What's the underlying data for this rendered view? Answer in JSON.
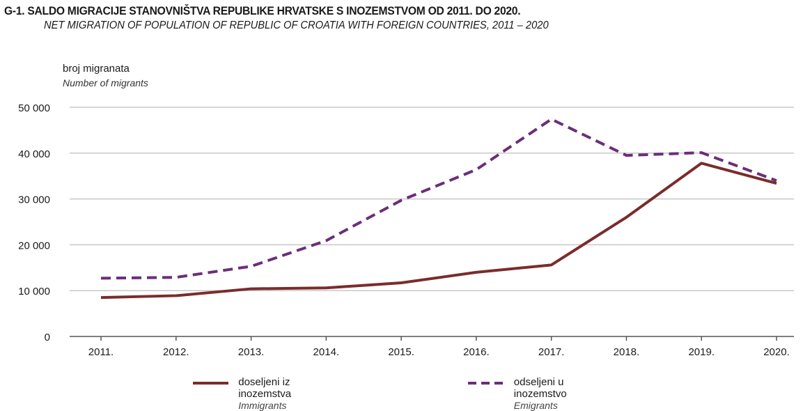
{
  "title": {
    "main": "G-1.  SALDO MIGRACIJE STANOVNIŠTVA REPUBLIKE HRVATSKE S INOZEMSTVOM OD 2011. DO 2020.",
    "sub": "NET MIGRATION OF POPULATION OF REPUBLIC OF CROATIA  WITH FOREIGN COUNTRIES, 2011 – 2020"
  },
  "yaxis": {
    "label_hr": "broj migranata",
    "label_en": "Number of migrants"
  },
  "colors": {
    "immigrants": "#7a2c2c",
    "emigrants": "#6b2e78",
    "grid": "#c8c8c8",
    "axis": "#555555"
  },
  "legend": [
    {
      "label_hr": "doseljeni iz inozemstva",
      "label_en": "Immigrants"
    },
    {
      "label_hr": "odseljeni u inozemstvo",
      "label_en": "Emigrants"
    }
  ],
  "chart_data": {
    "type": "line",
    "title": "SALDO MIGRACIJE STANOVNIŠTVA REPUBLIKE HRVATSKE S INOZEMSTVOM OD 2011. DO 2020.",
    "subtitle": "NET MIGRATION OF POPULATION OF REPUBLIC OF CROATIA  WITH FOREIGN COUNTRIES, 2011 – 2020",
    "xlabel": "",
    "ylabel": "broj migranata / Number of migrants",
    "categories": [
      "2011.",
      "2012.",
      "2013.",
      "2014.",
      "2015.",
      "2016.",
      "2017.",
      "2018.",
      "2019.",
      "2020."
    ],
    "ylim": [
      0,
      50000
    ],
    "yticks": [
      0,
      10000,
      20000,
      30000,
      40000,
      50000
    ],
    "ytick_labels": [
      "0",
      "10 000",
      "20 000",
      "30 000",
      "40 000",
      "50 000"
    ],
    "grid": true,
    "legend_position": "bottom",
    "series": [
      {
        "name": "doseljeni iz inozemstva / Immigrants",
        "style": "solid",
        "values": [
          8500,
          8900,
          10400,
          10600,
          11700,
          14000,
          15600,
          26000,
          37800,
          33400
        ]
      },
      {
        "name": "odseljeni u inozemstvo / Emigrants",
        "style": "dashed",
        "values": [
          12700,
          12900,
          15300,
          20900,
          29700,
          36400,
          47400,
          39500,
          40100,
          34000
        ]
      }
    ]
  }
}
